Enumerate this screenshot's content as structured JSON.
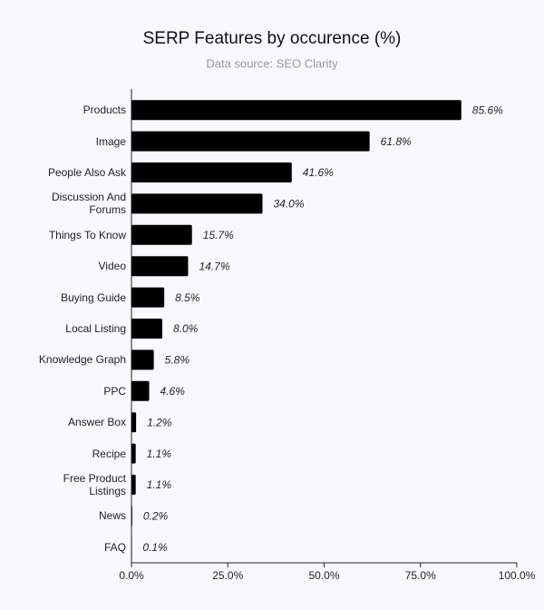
{
  "chart_data": {
    "type": "bar",
    "orientation": "horizontal",
    "title": "SERP Features by occurence (%)",
    "subtitle": "Data source: SEO Clarity",
    "categories": [
      "Products",
      "Image",
      "People Also Ask",
      "Discussion And Forums",
      "Things To Know",
      "Video",
      "Buying Guide",
      "Local Listing",
      "Knowledge Graph",
      "PPC",
      "Answer Box",
      "Recipe",
      "Free Product Listings",
      "News",
      "FAQ"
    ],
    "values": [
      85.6,
      61.8,
      41.6,
      34.0,
      15.7,
      14.7,
      8.5,
      8.0,
      5.8,
      4.6,
      1.2,
      1.1,
      1.1,
      0.2,
      0.1
    ],
    "value_labels": [
      "85.6%",
      "61.8%",
      "41.6%",
      "34.0%",
      "15.7%",
      "14.7%",
      "8.5%",
      "8.0%",
      "5.8%",
      "4.6%",
      "1.2%",
      "1.1%",
      "1.1%",
      "0.2%",
      "0.1%"
    ],
    "color": "#000000",
    "xlim": [
      0,
      100
    ],
    "xticks": [
      {
        "value": 0,
        "label": "0.0%"
      },
      {
        "value": 25,
        "label": "25.0%"
      },
      {
        "value": 50,
        "label": "50.0%"
      },
      {
        "value": 75,
        "label": "75.0%"
      },
      {
        "value": 100,
        "label": "100.0%"
      }
    ],
    "grid": false
  }
}
